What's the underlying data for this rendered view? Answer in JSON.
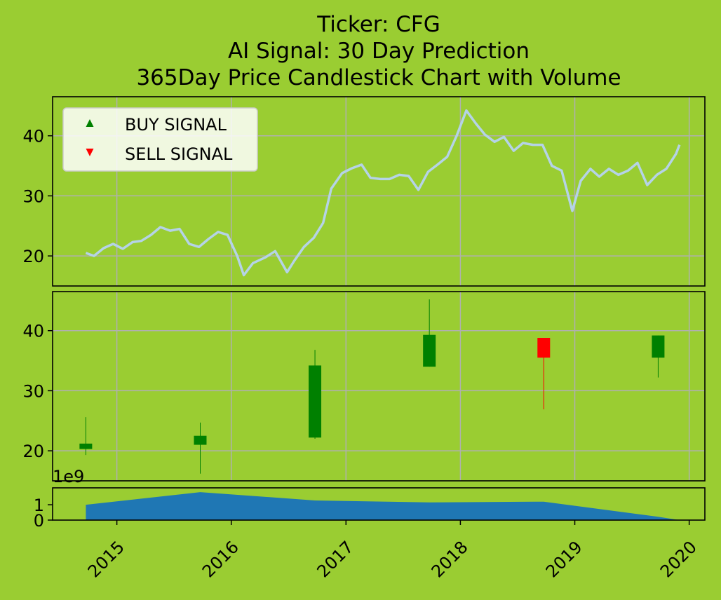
{
  "title": {
    "line1": "Ticker: CFG",
    "line2": "AI Signal: 30 Day Prediction",
    "line3": "365Day Price Candlestick Chart with Volume"
  },
  "legend": {
    "buy": "BUY SIGNAL",
    "sell": "SELL SIGNAL",
    "placement": "upper-left"
  },
  "colors": {
    "background": "#9acd32",
    "price_line": "#b5d3e7",
    "up": "#008000",
    "down": "#ff0000",
    "volume": "#1f77b4",
    "grid": "#b0b0b0"
  },
  "chart_data": [
    {
      "type": "line",
      "panel": "price",
      "ylim": [
        15,
        46.5
      ],
      "yticks": [
        20,
        30,
        40
      ],
      "grid": true,
      "series": [
        {
          "x": [
            "2014-09-24",
            "2014-10-20",
            "2014-11-20",
            "2014-12-20",
            "2015-01-20",
            "2015-02-20",
            "2015-03-20",
            "2015-04-20",
            "2015-05-20",
            "2015-06-20",
            "2015-07-20",
            "2015-08-20",
            "2015-09-20",
            "2015-10-20",
            "2015-11-20",
            "2015-12-20",
            "2016-01-20",
            "2016-02-10",
            "2016-03-10",
            "2016-04-20",
            "2016-05-20",
            "2016-06-27",
            "2016-07-20",
            "2016-08-20",
            "2016-09-20",
            "2016-10-20",
            "2016-11-15",
            "2016-12-20",
            "2017-01-20",
            "2017-02-20",
            "2017-03-20",
            "2017-04-20",
            "2017-05-20",
            "2017-06-20",
            "2017-07-20",
            "2017-08-20",
            "2017-09-20",
            "2017-10-20",
            "2017-11-20",
            "2017-12-20",
            "2018-01-20",
            "2018-02-20",
            "2018-03-20",
            "2018-04-20",
            "2018-05-20",
            "2018-06-20",
            "2018-07-20",
            "2018-08-20",
            "2018-09-20",
            "2018-10-20",
            "2018-11-20",
            "2018-12-24",
            "2019-01-20",
            "2019-02-20",
            "2019-03-20",
            "2019-04-20",
            "2019-05-20",
            "2019-06-20",
            "2019-07-20",
            "2019-08-20",
            "2019-09-20",
            "2019-10-20",
            "2019-11-20",
            "2019-12-01"
          ],
          "y": [
            20.5,
            20.0,
            21.3,
            22.0,
            21.2,
            22.3,
            22.5,
            23.5,
            24.8,
            24.2,
            24.5,
            22.0,
            21.5,
            22.8,
            24.0,
            23.5,
            20.0,
            16.8,
            18.8,
            19.8,
            20.8,
            17.3,
            19.2,
            21.5,
            23.0,
            25.5,
            31.2,
            33.8,
            34.6,
            35.2,
            33.0,
            32.8,
            32.8,
            33.5,
            33.3,
            31.0,
            34.0,
            35.2,
            36.5,
            40.0,
            44.2,
            42.0,
            40.2,
            39.0,
            39.8,
            37.5,
            38.8,
            38.5,
            38.5,
            35.0,
            34.2,
            27.5,
            32.5,
            34.5,
            33.2,
            34.5,
            33.5,
            34.2,
            35.5,
            31.8,
            33.5,
            34.5,
            37.0,
            38.5
          ]
        }
      ]
    },
    {
      "type": "candlestick",
      "panel": "candles",
      "ylim": [
        15,
        46.5
      ],
      "yticks": [
        20,
        30,
        40
      ],
      "grid": true,
      "candles": [
        {
          "date": "2014-09-24",
          "open": 20.3,
          "close": 21.2,
          "high": 25.6,
          "low": 19.3
        },
        {
          "date": "2015-09-24",
          "open": 21.0,
          "close": 22.5,
          "high": 24.7,
          "low": 16.2
        },
        {
          "date": "2016-09-24",
          "open": 22.2,
          "close": 34.2,
          "high": 36.8,
          "low": 22.0
        },
        {
          "date": "2017-09-24",
          "open": 34.0,
          "close": 39.3,
          "high": 45.2,
          "low": 34.0
        },
        {
          "date": "2018-09-24",
          "open": 38.8,
          "close": 35.5,
          "high": 38.8,
          "low": 26.9
        },
        {
          "date": "2019-09-24",
          "open": 35.5,
          "close": 39.2,
          "high": 39.2,
          "low": 32.2
        }
      ]
    },
    {
      "type": "area",
      "panel": "volume",
      "ylabel_offset": "1e9",
      "ylim": [
        0,
        2.1
      ],
      "yticks": [
        0,
        1
      ],
      "grid": false,
      "x": [
        "2014-09-24",
        "2015-09-24",
        "2016-09-24",
        "2017-09-24",
        "2018-09-24",
        "2019-09-24",
        "2019-12-01"
      ],
      "values": [
        1.0,
        1.82,
        1.28,
        1.15,
        1.2,
        0.22,
        0.0
      ]
    }
  ],
  "x_axis": {
    "ticks": [
      "2015",
      "2016",
      "2017",
      "2018",
      "2019",
      "2020"
    ],
    "tick_rotation": 45,
    "range": [
      "2014-06-10",
      "2020-02-20"
    ]
  }
}
